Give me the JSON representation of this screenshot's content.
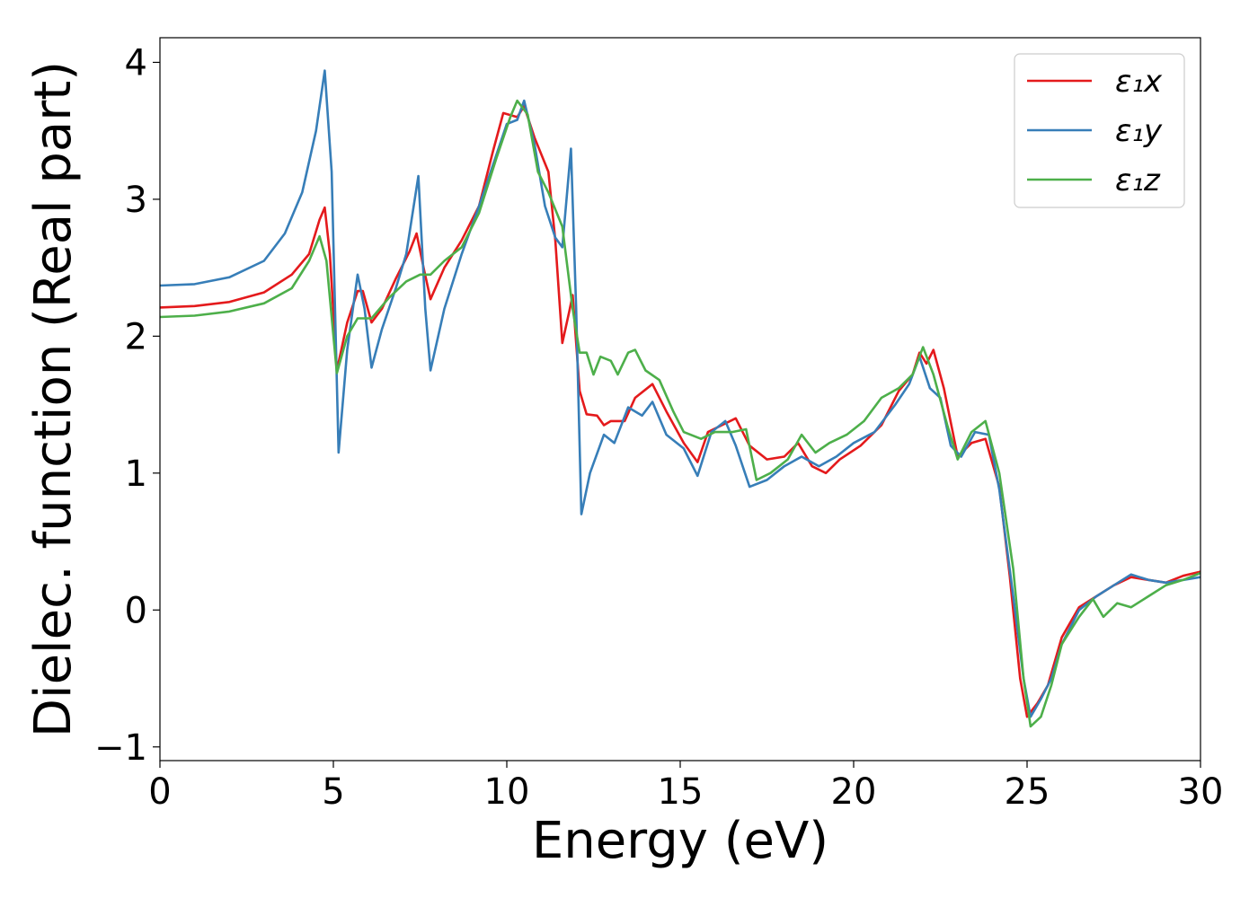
{
  "chart_data": {
    "type": "line",
    "xlabel": "Energy (eV)",
    "ylabel": "Dielec. function (Real part)",
    "xlim": [
      0,
      30
    ],
    "ylim": [
      -1.1,
      4.18
    ],
    "xticks": [
      0,
      5,
      10,
      15,
      20,
      25,
      30
    ],
    "xtick_labels": [
      "0",
      "5",
      "10",
      "15",
      "20",
      "25",
      "30"
    ],
    "yticks": [
      -1,
      0,
      1,
      2,
      3,
      4
    ],
    "ytick_labels": [
      "−1",
      "0",
      "1",
      "2",
      "3",
      "4"
    ],
    "grid": false,
    "legend_position": "top-right",
    "series": [
      {
        "name": "ε₁x",
        "color": "#e41a1c",
        "points": [
          [
            0,
            2.21
          ],
          [
            1,
            2.22
          ],
          [
            2,
            2.25
          ],
          [
            3,
            2.32
          ],
          [
            3.8,
            2.45
          ],
          [
            4.3,
            2.6
          ],
          [
            4.6,
            2.85
          ],
          [
            4.75,
            2.94
          ],
          [
            4.9,
            2.6
          ],
          [
            5.1,
            1.75
          ],
          [
            5.4,
            2.1
          ],
          [
            5.7,
            2.33
          ],
          [
            5.85,
            2.33
          ],
          [
            6.1,
            2.1
          ],
          [
            6.4,
            2.2
          ],
          [
            6.8,
            2.42
          ],
          [
            7.2,
            2.62
          ],
          [
            7.4,
            2.75
          ],
          [
            7.6,
            2.5
          ],
          [
            7.8,
            2.27
          ],
          [
            8.2,
            2.5
          ],
          [
            8.7,
            2.7
          ],
          [
            9.2,
            2.95
          ],
          [
            9.6,
            3.35
          ],
          [
            9.9,
            3.63
          ],
          [
            10.3,
            3.6
          ],
          [
            10.5,
            3.68
          ],
          [
            10.8,
            3.45
          ],
          [
            11.2,
            3.2
          ],
          [
            11.4,
            2.7
          ],
          [
            11.6,
            1.95
          ],
          [
            11.8,
            2.18
          ],
          [
            11.9,
            2.3
          ],
          [
            12.1,
            1.6
          ],
          [
            12.3,
            1.43
          ],
          [
            12.6,
            1.42
          ],
          [
            12.8,
            1.35
          ],
          [
            13,
            1.38
          ],
          [
            13.4,
            1.38
          ],
          [
            13.7,
            1.55
          ],
          [
            14.2,
            1.65
          ],
          [
            14.6,
            1.45
          ],
          [
            15.1,
            1.22
          ],
          [
            15.5,
            1.08
          ],
          [
            15.8,
            1.3
          ],
          [
            16.2,
            1.35
          ],
          [
            16.6,
            1.4
          ],
          [
            17,
            1.2
          ],
          [
            17.5,
            1.1
          ],
          [
            18,
            1.12
          ],
          [
            18.4,
            1.22
          ],
          [
            18.8,
            1.05
          ],
          [
            19.2,
            1
          ],
          [
            19.6,
            1.1
          ],
          [
            20.2,
            1.2
          ],
          [
            20.8,
            1.35
          ],
          [
            21.3,
            1.6
          ],
          [
            21.7,
            1.72
          ],
          [
            21.9,
            1.88
          ],
          [
            22.1,
            1.8
          ],
          [
            22.3,
            1.9
          ],
          [
            22.6,
            1.62
          ],
          [
            23,
            1.12
          ],
          [
            23.4,
            1.22
          ],
          [
            23.8,
            1.25
          ],
          [
            24.2,
            0.9
          ],
          [
            24.5,
            0.25
          ],
          [
            24.8,
            -0.5
          ],
          [
            25,
            -0.78
          ],
          [
            25.3,
            -0.68
          ],
          [
            25.6,
            -0.55
          ],
          [
            26,
            -0.2
          ],
          [
            26.5,
            0.02
          ],
          [
            27,
            0.1
          ],
          [
            27.5,
            0.18
          ],
          [
            28,
            0.24
          ],
          [
            28.5,
            0.22
          ],
          [
            29,
            0.2
          ],
          [
            29.5,
            0.25
          ],
          [
            30,
            0.28
          ]
        ]
      },
      {
        "name": "ε₁y",
        "color": "#377eb8",
        "points": [
          [
            0,
            2.37
          ],
          [
            1,
            2.38
          ],
          [
            2,
            2.43
          ],
          [
            3,
            2.55
          ],
          [
            3.6,
            2.75
          ],
          [
            4.1,
            3.05
          ],
          [
            4.5,
            3.5
          ],
          [
            4.75,
            3.94
          ],
          [
            4.95,
            3.2
          ],
          [
            5.15,
            1.15
          ],
          [
            5.4,
            1.9
          ],
          [
            5.7,
            2.45
          ],
          [
            5.9,
            2.2
          ],
          [
            6.1,
            1.77
          ],
          [
            6.4,
            2.05
          ],
          [
            6.8,
            2.35
          ],
          [
            7.1,
            2.6
          ],
          [
            7.45,
            3.17
          ],
          [
            7.65,
            2.2
          ],
          [
            7.8,
            1.75
          ],
          [
            8.2,
            2.2
          ],
          [
            8.7,
            2.6
          ],
          [
            9.2,
            2.95
          ],
          [
            9.6,
            3.25
          ],
          [
            10,
            3.55
          ],
          [
            10.3,
            3.58
          ],
          [
            10.5,
            3.72
          ],
          [
            10.8,
            3.4
          ],
          [
            11.1,
            2.95
          ],
          [
            11.4,
            2.72
          ],
          [
            11.6,
            2.65
          ],
          [
            11.85,
            3.37
          ],
          [
            12,
            2.2
          ],
          [
            12.15,
            0.7
          ],
          [
            12.4,
            1
          ],
          [
            12.8,
            1.28
          ],
          [
            13.1,
            1.22
          ],
          [
            13.5,
            1.48
          ],
          [
            13.9,
            1.42
          ],
          [
            14.2,
            1.52
          ],
          [
            14.6,
            1.28
          ],
          [
            15.1,
            1.18
          ],
          [
            15.5,
            0.98
          ],
          [
            15.9,
            1.3
          ],
          [
            16.3,
            1.38
          ],
          [
            16.6,
            1.2
          ],
          [
            17,
            0.9
          ],
          [
            17.5,
            0.95
          ],
          [
            18,
            1.05
          ],
          [
            18.5,
            1.12
          ],
          [
            19,
            1.05
          ],
          [
            19.5,
            1.12
          ],
          [
            20,
            1.22
          ],
          [
            20.6,
            1.3
          ],
          [
            21.2,
            1.5
          ],
          [
            21.6,
            1.65
          ],
          [
            21.9,
            1.85
          ],
          [
            22.2,
            1.62
          ],
          [
            22.5,
            1.55
          ],
          [
            22.8,
            1.2
          ],
          [
            23.1,
            1.12
          ],
          [
            23.5,
            1.3
          ],
          [
            23.9,
            1.28
          ],
          [
            24.2,
            0.88
          ],
          [
            24.6,
            0.1
          ],
          [
            24.9,
            -0.5
          ],
          [
            25.1,
            -0.78
          ],
          [
            25.4,
            -0.65
          ],
          [
            25.7,
            -0.5
          ],
          [
            26,
            -0.25
          ],
          [
            26.5,
            0
          ],
          [
            27,
            0.1
          ],
          [
            27.5,
            0.18
          ],
          [
            28,
            0.26
          ],
          [
            28.5,
            0.22
          ],
          [
            29,
            0.2
          ],
          [
            29.5,
            0.22
          ],
          [
            30,
            0.24
          ]
        ]
      },
      {
        "name": "ε₁z",
        "color": "#4daf4a",
        "points": [
          [
            0,
            2.14
          ],
          [
            1,
            2.15
          ],
          [
            2,
            2.18
          ],
          [
            3,
            2.24
          ],
          [
            3.8,
            2.35
          ],
          [
            4.3,
            2.55
          ],
          [
            4.6,
            2.73
          ],
          [
            4.8,
            2.55
          ],
          [
            5.1,
            1.73
          ],
          [
            5.4,
            2
          ],
          [
            5.7,
            2.13
          ],
          [
            6.1,
            2.13
          ],
          [
            6.6,
            2.28
          ],
          [
            7.1,
            2.4
          ],
          [
            7.5,
            2.45
          ],
          [
            7.8,
            2.45
          ],
          [
            8.2,
            2.55
          ],
          [
            8.7,
            2.65
          ],
          [
            9.2,
            2.9
          ],
          [
            9.7,
            3.3
          ],
          [
            10.1,
            3.6
          ],
          [
            10.3,
            3.72
          ],
          [
            10.6,
            3.62
          ],
          [
            10.9,
            3.2
          ],
          [
            11.2,
            3.05
          ],
          [
            11.6,
            2.8
          ],
          [
            11.9,
            2.2
          ],
          [
            12.1,
            1.88
          ],
          [
            12.3,
            1.88
          ],
          [
            12.5,
            1.72
          ],
          [
            12.7,
            1.85
          ],
          [
            13,
            1.82
          ],
          [
            13.2,
            1.72
          ],
          [
            13.5,
            1.88
          ],
          [
            13.7,
            1.9
          ],
          [
            14,
            1.75
          ],
          [
            14.4,
            1.68
          ],
          [
            14.8,
            1.45
          ],
          [
            15.1,
            1.3
          ],
          [
            15.6,
            1.25
          ],
          [
            16,
            1.3
          ],
          [
            16.5,
            1.3
          ],
          [
            16.9,
            1.32
          ],
          [
            17.2,
            0.95
          ],
          [
            17.6,
            1
          ],
          [
            18.1,
            1.1
          ],
          [
            18.5,
            1.28
          ],
          [
            18.9,
            1.15
          ],
          [
            19.3,
            1.22
          ],
          [
            19.8,
            1.28
          ],
          [
            20.3,
            1.38
          ],
          [
            20.8,
            1.55
          ],
          [
            21.3,
            1.62
          ],
          [
            21.7,
            1.72
          ],
          [
            22,
            1.92
          ],
          [
            22.3,
            1.72
          ],
          [
            22.7,
            1.35
          ],
          [
            23,
            1.1
          ],
          [
            23.4,
            1.3
          ],
          [
            23.8,
            1.38
          ],
          [
            24.2,
            1
          ],
          [
            24.6,
            0.3
          ],
          [
            24.9,
            -0.5
          ],
          [
            25.1,
            -0.85
          ],
          [
            25.4,
            -0.78
          ],
          [
            25.7,
            -0.55
          ],
          [
            26,
            -0.25
          ],
          [
            26.5,
            -0.05
          ],
          [
            26.9,
            0.08
          ],
          [
            27.2,
            -0.05
          ],
          [
            27.6,
            0.05
          ],
          [
            28,
            0.02
          ],
          [
            28.5,
            0.1
          ],
          [
            29,
            0.18
          ],
          [
            29.5,
            0.22
          ],
          [
            30,
            0.27
          ]
        ]
      }
    ]
  }
}
